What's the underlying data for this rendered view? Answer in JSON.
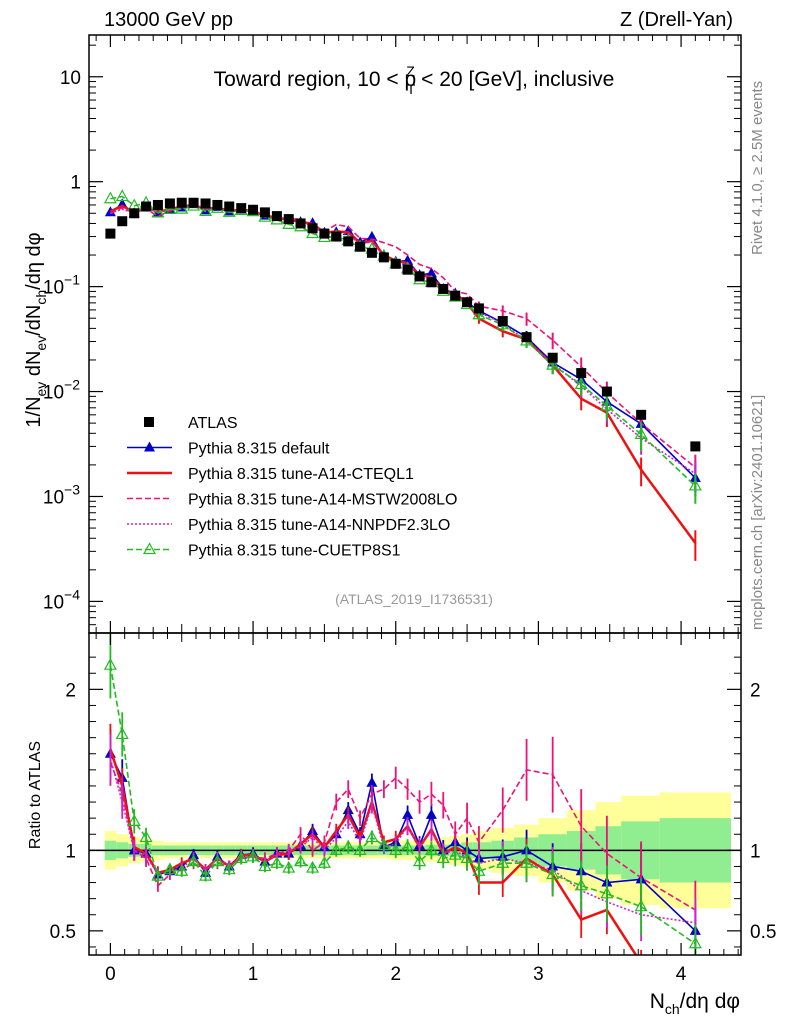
{
  "header": {
    "energy_label": "13000 GeV pp",
    "process_label": "Z (Drell-Yan)",
    "side_top": "Rivet 4.1.0, ≥ 2.5M events",
    "side_bottom": "mcplots.cern.ch [arXiv:2401.10621]",
    "analysis_id": "(ATLAS_2019_I1736531)"
  },
  "chart_data": {
    "type": "scatter",
    "title": "Toward region, 10 < pTZ < 20 [GeV], inclusive",
    "title_parts": {
      "pre": "Toward region, 10 < p",
      "sup": "Z",
      "sub": "T",
      "post": " < 20 [GeV], inclusive"
    },
    "xlabel": "Nch/dη dφ",
    "ylabel": "1/Nev dNev/dNch/dη dφ",
    "ratio_ylabel": "Ratio to ATLAS",
    "xlim": [
      -0.15,
      4.42
    ],
    "ylim": [
      5e-05,
      25
    ],
    "ratio_ylim": [
      0.35,
      2.35
    ],
    "log_y": true,
    "x_ticks": [
      0,
      1,
      2,
      3,
      4
    ],
    "y_ticks": [
      {
        "value": 10,
        "base": "10",
        "exp": ""
      },
      {
        "value": 1,
        "base": "1",
        "exp": ""
      },
      {
        "value": 0.1,
        "base": "10",
        "exp": "−1"
      },
      {
        "value": 0.01,
        "base": "10",
        "exp": "−2"
      },
      {
        "value": 0.001,
        "base": "10",
        "exp": "−3"
      },
      {
        "value": 0.0001,
        "base": "10",
        "exp": "−4"
      }
    ],
    "ratio_ticks": [
      0.5,
      1,
      2
    ],
    "x": [
      0,
      0.083,
      0.167,
      0.25,
      0.333,
      0.417,
      0.5,
      0.583,
      0.667,
      0.75,
      0.833,
      0.917,
      1.0,
      1.083,
      1.167,
      1.25,
      1.333,
      1.417,
      1.5,
      1.583,
      1.667,
      1.75,
      1.833,
      1.917,
      2.0,
      2.083,
      2.167,
      2.25,
      2.333,
      2.417,
      2.5,
      2.583,
      2.75,
      2.917,
      3.1,
      3.3,
      3.48,
      3.72,
      4.1
    ],
    "band_edges": [
      -0.04,
      0.04,
      0.125,
      0.21,
      0.29,
      0.375,
      0.46,
      0.54,
      0.625,
      0.71,
      0.79,
      0.875,
      0.96,
      1.04,
      1.125,
      1.21,
      1.29,
      1.375,
      1.46,
      1.54,
      1.625,
      1.71,
      1.79,
      1.875,
      1.96,
      2.04,
      2.125,
      2.21,
      2.29,
      2.375,
      2.46,
      2.54,
      2.67,
      2.83,
      3.0,
      3.2,
      3.4,
      3.58,
      3.85,
      4.35
    ],
    "band_stat": [
      0.06,
      0.05,
      0.04,
      0.04,
      0.03,
      0.03,
      0.03,
      0.03,
      0.03,
      0.03,
      0.03,
      0.03,
      0.03,
      0.03,
      0.03,
      0.03,
      0.03,
      0.03,
      0.03,
      0.03,
      0.03,
      0.03,
      0.03,
      0.03,
      0.03,
      0.03,
      0.03,
      0.035,
      0.035,
      0.04,
      0.05,
      0.05,
      0.06,
      0.08,
      0.1,
      0.12,
      0.15,
      0.18,
      0.2
    ],
    "band_total": [
      0.12,
      0.1,
      0.08,
      0.07,
      0.06,
      0.05,
      0.05,
      0.05,
      0.05,
      0.05,
      0.05,
      0.05,
      0.05,
      0.05,
      0.05,
      0.05,
      0.05,
      0.05,
      0.05,
      0.05,
      0.05,
      0.05,
      0.05,
      0.05,
      0.06,
      0.06,
      0.07,
      0.07,
      0.08,
      0.09,
      0.1,
      0.12,
      0.14,
      0.16,
      0.2,
      0.25,
      0.3,
      0.34,
      0.36
    ],
    "data": {
      "name": "ATLAS",
      "values": [
        0.32,
        0.42,
        0.5,
        0.58,
        0.6,
        0.62,
        0.63,
        0.63,
        0.62,
        0.6,
        0.58,
        0.56,
        0.54,
        0.51,
        0.47,
        0.44,
        0.4,
        0.36,
        0.32,
        0.3,
        0.27,
        0.24,
        0.21,
        0.19,
        0.165,
        0.145,
        0.125,
        0.11,
        0.095,
        0.082,
        0.071,
        0.062,
        0.047,
        0.033,
        0.021,
        0.015,
        0.01,
        0.006,
        0.003
      ]
    },
    "series": [
      {
        "name": "Pythia 8.315 default",
        "color": "#0000cc",
        "style": "solid",
        "marker": "triangle-filled",
        "ratio": [
          1.6,
          1.45,
          1.0,
          0.98,
          0.85,
          0.87,
          0.9,
          0.97,
          0.86,
          0.96,
          0.9,
          0.97,
          0.98,
          0.93,
          0.98,
          0.98,
          1.03,
          1.12,
          1.02,
          1.1,
          1.25,
          1.1,
          1.42,
          1.02,
          1.05,
          1.22,
          1.03,
          1.22,
          1.0,
          1.05,
          1.0,
          0.95,
          0.96,
          1.0,
          0.9,
          0.87,
          0.8,
          0.82,
          0.5
        ]
      },
      {
        "name": "Pythia 8.315 tune-A14-CTEQL1",
        "color": "#ee1111",
        "style": "solid",
        "marker": "none",
        "ratio": [
          1.63,
          1.4,
          1.02,
          0.98,
          0.86,
          0.88,
          0.92,
          0.95,
          0.88,
          0.95,
          0.9,
          0.97,
          0.97,
          0.93,
          0.97,
          0.98,
          1.04,
          1.1,
          1.02,
          1.12,
          1.22,
          1.08,
          1.3,
          1.05,
          1.07,
          1.15,
          1.02,
          1.13,
          0.98,
          1.02,
          0.98,
          0.8,
          0.8,
          0.95,
          0.85,
          0.57,
          0.63,
          0.3,
          0.12
        ]
      },
      {
        "name": "Pythia 8.315 tune-A14-MSTW2008LO",
        "color": "#ee1177",
        "style": "dashed",
        "marker": "none",
        "ratio": [
          1.55,
          1.35,
          1.0,
          0.95,
          0.78,
          0.85,
          0.88,
          0.92,
          0.88,
          0.92,
          0.9,
          0.95,
          0.96,
          0.95,
          0.98,
          1.0,
          1.1,
          1.0,
          1.05,
          1.3,
          1.38,
          1.2,
          1.35,
          1.38,
          1.45,
          1.38,
          1.3,
          1.35,
          1.28,
          1.1,
          1.2,
          1.05,
          1.25,
          1.5,
          1.47,
          1.15,
          0.98,
          0.83,
          0.63
        ]
      },
      {
        "name": "Pythia 8.315 tune-A14-NNPDF2.3LO",
        "color": "#cc22cc",
        "style": "dotted",
        "marker": "none",
        "ratio": [
          1.57,
          1.3,
          1.0,
          0.97,
          0.85,
          0.87,
          0.89,
          0.95,
          0.87,
          0.95,
          0.9,
          0.96,
          0.97,
          0.93,
          0.97,
          1.0,
          1.02,
          1.08,
          1.0,
          1.08,
          1.18,
          1.05,
          1.28,
          1.02,
          1.04,
          1.15,
          1.02,
          1.12,
          0.98,
          1.0,
          0.95,
          0.92,
          0.95,
          0.92,
          0.88,
          0.75,
          0.68,
          0.6,
          0.55
        ]
      },
      {
        "name": "Pythia 8.315 tune-CUETP8S1",
        "color": "#22bb22",
        "style": "dashed",
        "marker": "triangle-open",
        "ratio": [
          2.15,
          1.72,
          1.18,
          1.08,
          0.84,
          0.88,
          0.87,
          0.93,
          0.84,
          0.93,
          0.88,
          0.95,
          0.96,
          0.9,
          0.92,
          0.89,
          0.93,
          0.89,
          0.92,
          1.0,
          1.02,
          1.0,
          1.08,
          1.03,
          1.0,
          1.02,
          0.93,
          1.0,
          0.95,
          0.97,
          0.95,
          0.87,
          0.92,
          0.92,
          0.85,
          0.78,
          0.73,
          0.65,
          0.42
        ]
      }
    ],
    "legend": {
      "position": "left-middle",
      "entries": [
        "ATLAS",
        "Pythia 8.315 default",
        "Pythia 8.315 tune-A14-CTEQL1",
        "Pythia 8.315 tune-A14-MSTW2008LO",
        "Pythia 8.315 tune-A14-NNPDF2.3LO",
        "Pythia 8.315 tune-CUETP8S1"
      ]
    },
    "colors": {
      "band_stat": "#90ee90",
      "band_total": "#ffff99"
    }
  }
}
